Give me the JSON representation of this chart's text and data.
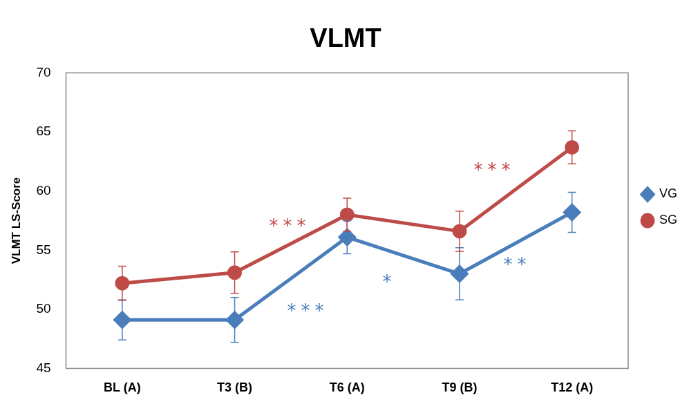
{
  "chart_data": {
    "type": "line",
    "title": "VLMT",
    "ylabel": "VLMT LS-Score",
    "categories": [
      "BL (A)",
      "T3 (B)",
      "T6 (A)",
      "T9 (B)",
      "T12 (A)"
    ],
    "series": [
      {
        "name": "VG",
        "color": "#4a7ebb",
        "marker": "diamond",
        "values": [
          49.1,
          49.1,
          56.1,
          53.0,
          58.2
        ],
        "errors": [
          1.7,
          1.9,
          1.4,
          2.2,
          1.7
        ]
      },
      {
        "name": "SG",
        "color": "#be4b48",
        "marker": "circle",
        "values": [
          52.2,
          53.1,
          58.0,
          56.6,
          63.7
        ],
        "errors": [
          1.45,
          1.75,
          1.4,
          1.7,
          1.4
        ]
      }
    ],
    "ylim": [
      45,
      70
    ],
    "yticks": [
      45,
      50,
      55,
      60,
      65,
      70
    ],
    "grid": false,
    "legend": "right",
    "line_style": "solid",
    "annotations": [
      "***",
      "***",
      "*",
      "***",
      "**"
    ]
  }
}
